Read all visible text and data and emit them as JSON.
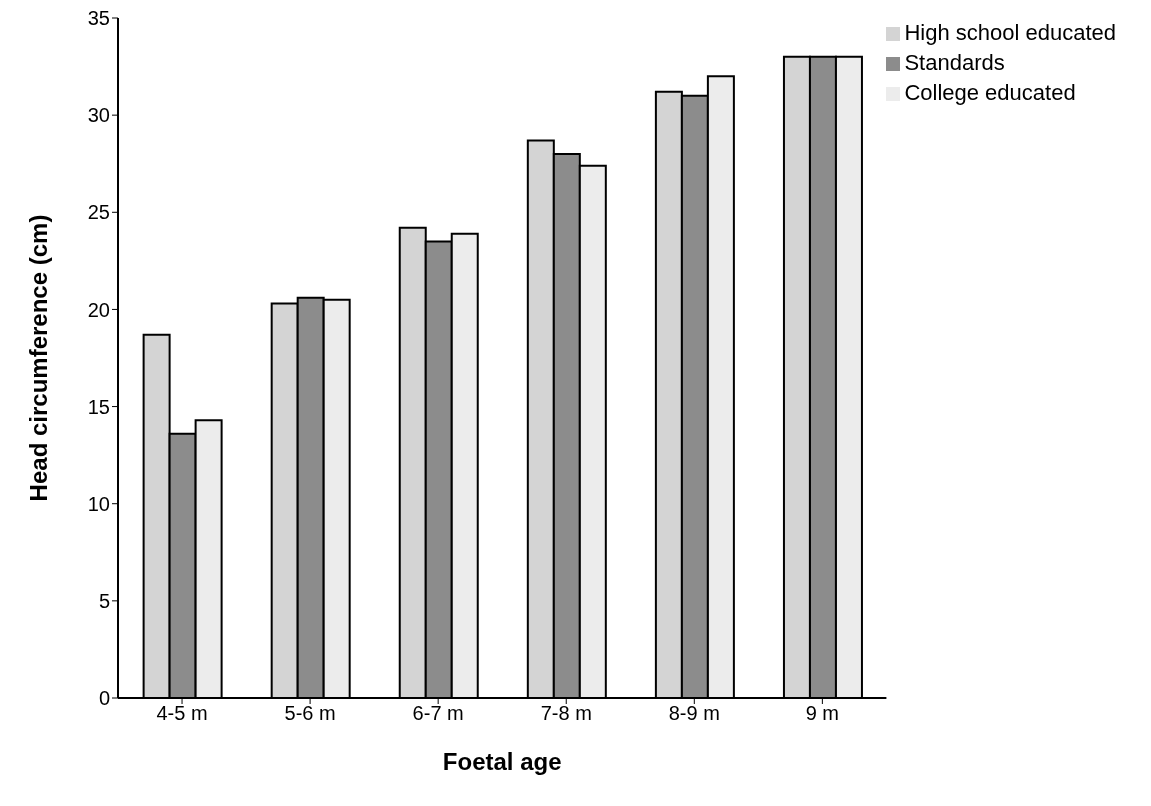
{
  "chart_data": {
    "type": "bar",
    "categories": [
      "4-5 m",
      "5-6 m",
      "6-7 m",
      "7-8 m",
      "8-9 m",
      "9 m"
    ],
    "series": [
      {
        "name": "High school educated",
        "color": "#d4d4d4",
        "values": [
          18.7,
          20.3,
          24.2,
          28.7,
          31.2,
          33.0
        ]
      },
      {
        "name": "Standards",
        "color": "#8c8c8c",
        "values": [
          13.6,
          20.6,
          23.5,
          28.0,
          31.0,
          33.0
        ]
      },
      {
        "name": "College educated",
        "color": "#ececec",
        "values": [
          14.3,
          20.5,
          23.9,
          27.4,
          32.0,
          33.0
        ]
      }
    ],
    "xlabel": "Foetal age",
    "ylabel": "Head circumference (cm)",
    "ylim": [
      0,
      35
    ],
    "yticks": [
      0,
      5,
      10,
      15,
      20,
      25,
      30,
      35
    ],
    "grid": false,
    "legend": "top right"
  }
}
